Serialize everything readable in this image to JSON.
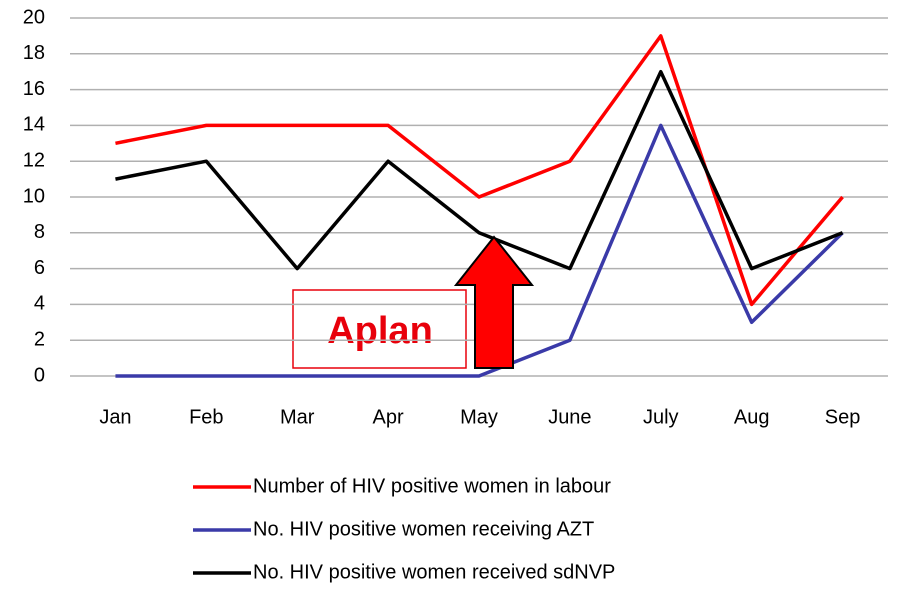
{
  "chart_data": {
    "type": "line",
    "categories": [
      "Jan",
      "Feb",
      "Mar",
      "Apr",
      "May",
      "June",
      "July",
      "Aug",
      "Sep"
    ],
    "series": [
      {
        "name": "Number of HIV positive women in labour",
        "color": "#ff0000",
        "values": [
          13,
          14,
          14,
          14,
          10,
          12,
          19,
          4,
          10
        ]
      },
      {
        "name": "No. HIV positive women receiving AZT",
        "color": "#3a3aa8",
        "values": [
          0,
          0,
          0,
          0,
          0,
          2,
          14,
          3,
          8
        ]
      },
      {
        "name": "No. HIV positive women received sdNVP",
        "color": "#000000",
        "values": [
          11,
          12,
          6,
          12,
          8,
          6,
          17,
          6,
          8
        ]
      }
    ],
    "ylim": [
      0,
      20
    ],
    "yticks": [
      0,
      2,
      4,
      6,
      8,
      10,
      12,
      14,
      16,
      18,
      20
    ],
    "grid": true,
    "annotation": "Aplan"
  }
}
